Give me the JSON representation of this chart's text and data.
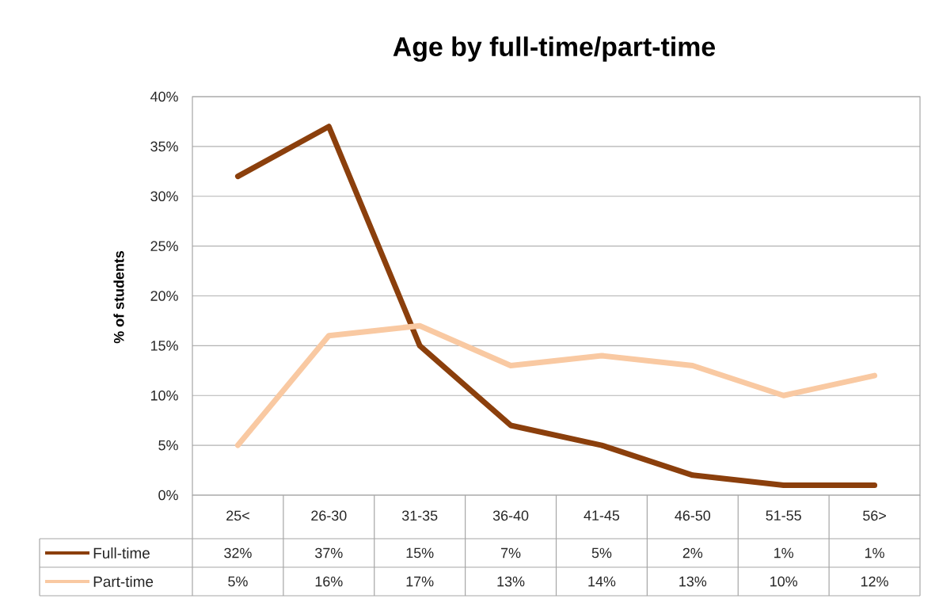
{
  "chart_data": {
    "type": "line",
    "title": "Age by full-time/part-time",
    "ylabel": "% of students",
    "categories": [
      "25<",
      "26-30",
      "31-35",
      "36-40",
      "41-45",
      "46-50",
      "51-55",
      "56>"
    ],
    "series": [
      {
        "name": "Full-time",
        "color": "#8b3f0c",
        "values": [
          32,
          37,
          15,
          7,
          5,
          2,
          1,
          1
        ],
        "value_labels": [
          "32%",
          "37%",
          "15%",
          "7%",
          "5%",
          "2%",
          "1%",
          "1%"
        ]
      },
      {
        "name": "Part-time",
        "color": "#f9c9a2",
        "values": [
          5,
          16,
          17,
          13,
          14,
          13,
          10,
          12
        ],
        "value_labels": [
          "5%",
          "16%",
          "17%",
          "13%",
          "14%",
          "13%",
          "10%",
          "12%"
        ]
      }
    ],
    "ylim": [
      0,
      40
    ],
    "yticks": [
      {
        "value": 0,
        "label": "0%"
      },
      {
        "value": 5,
        "label": "5%"
      },
      {
        "value": 10,
        "label": "10%"
      },
      {
        "value": 15,
        "label": "15%"
      },
      {
        "value": 20,
        "label": "20%"
      },
      {
        "value": 25,
        "label": "25%"
      },
      {
        "value": 30,
        "label": "30%"
      },
      {
        "value": 35,
        "label": "35%"
      },
      {
        "value": 40,
        "label": "40%"
      }
    ],
    "grid": "y",
    "legend": "bottom left",
    "marker": "none",
    "line_style": "solid"
  }
}
